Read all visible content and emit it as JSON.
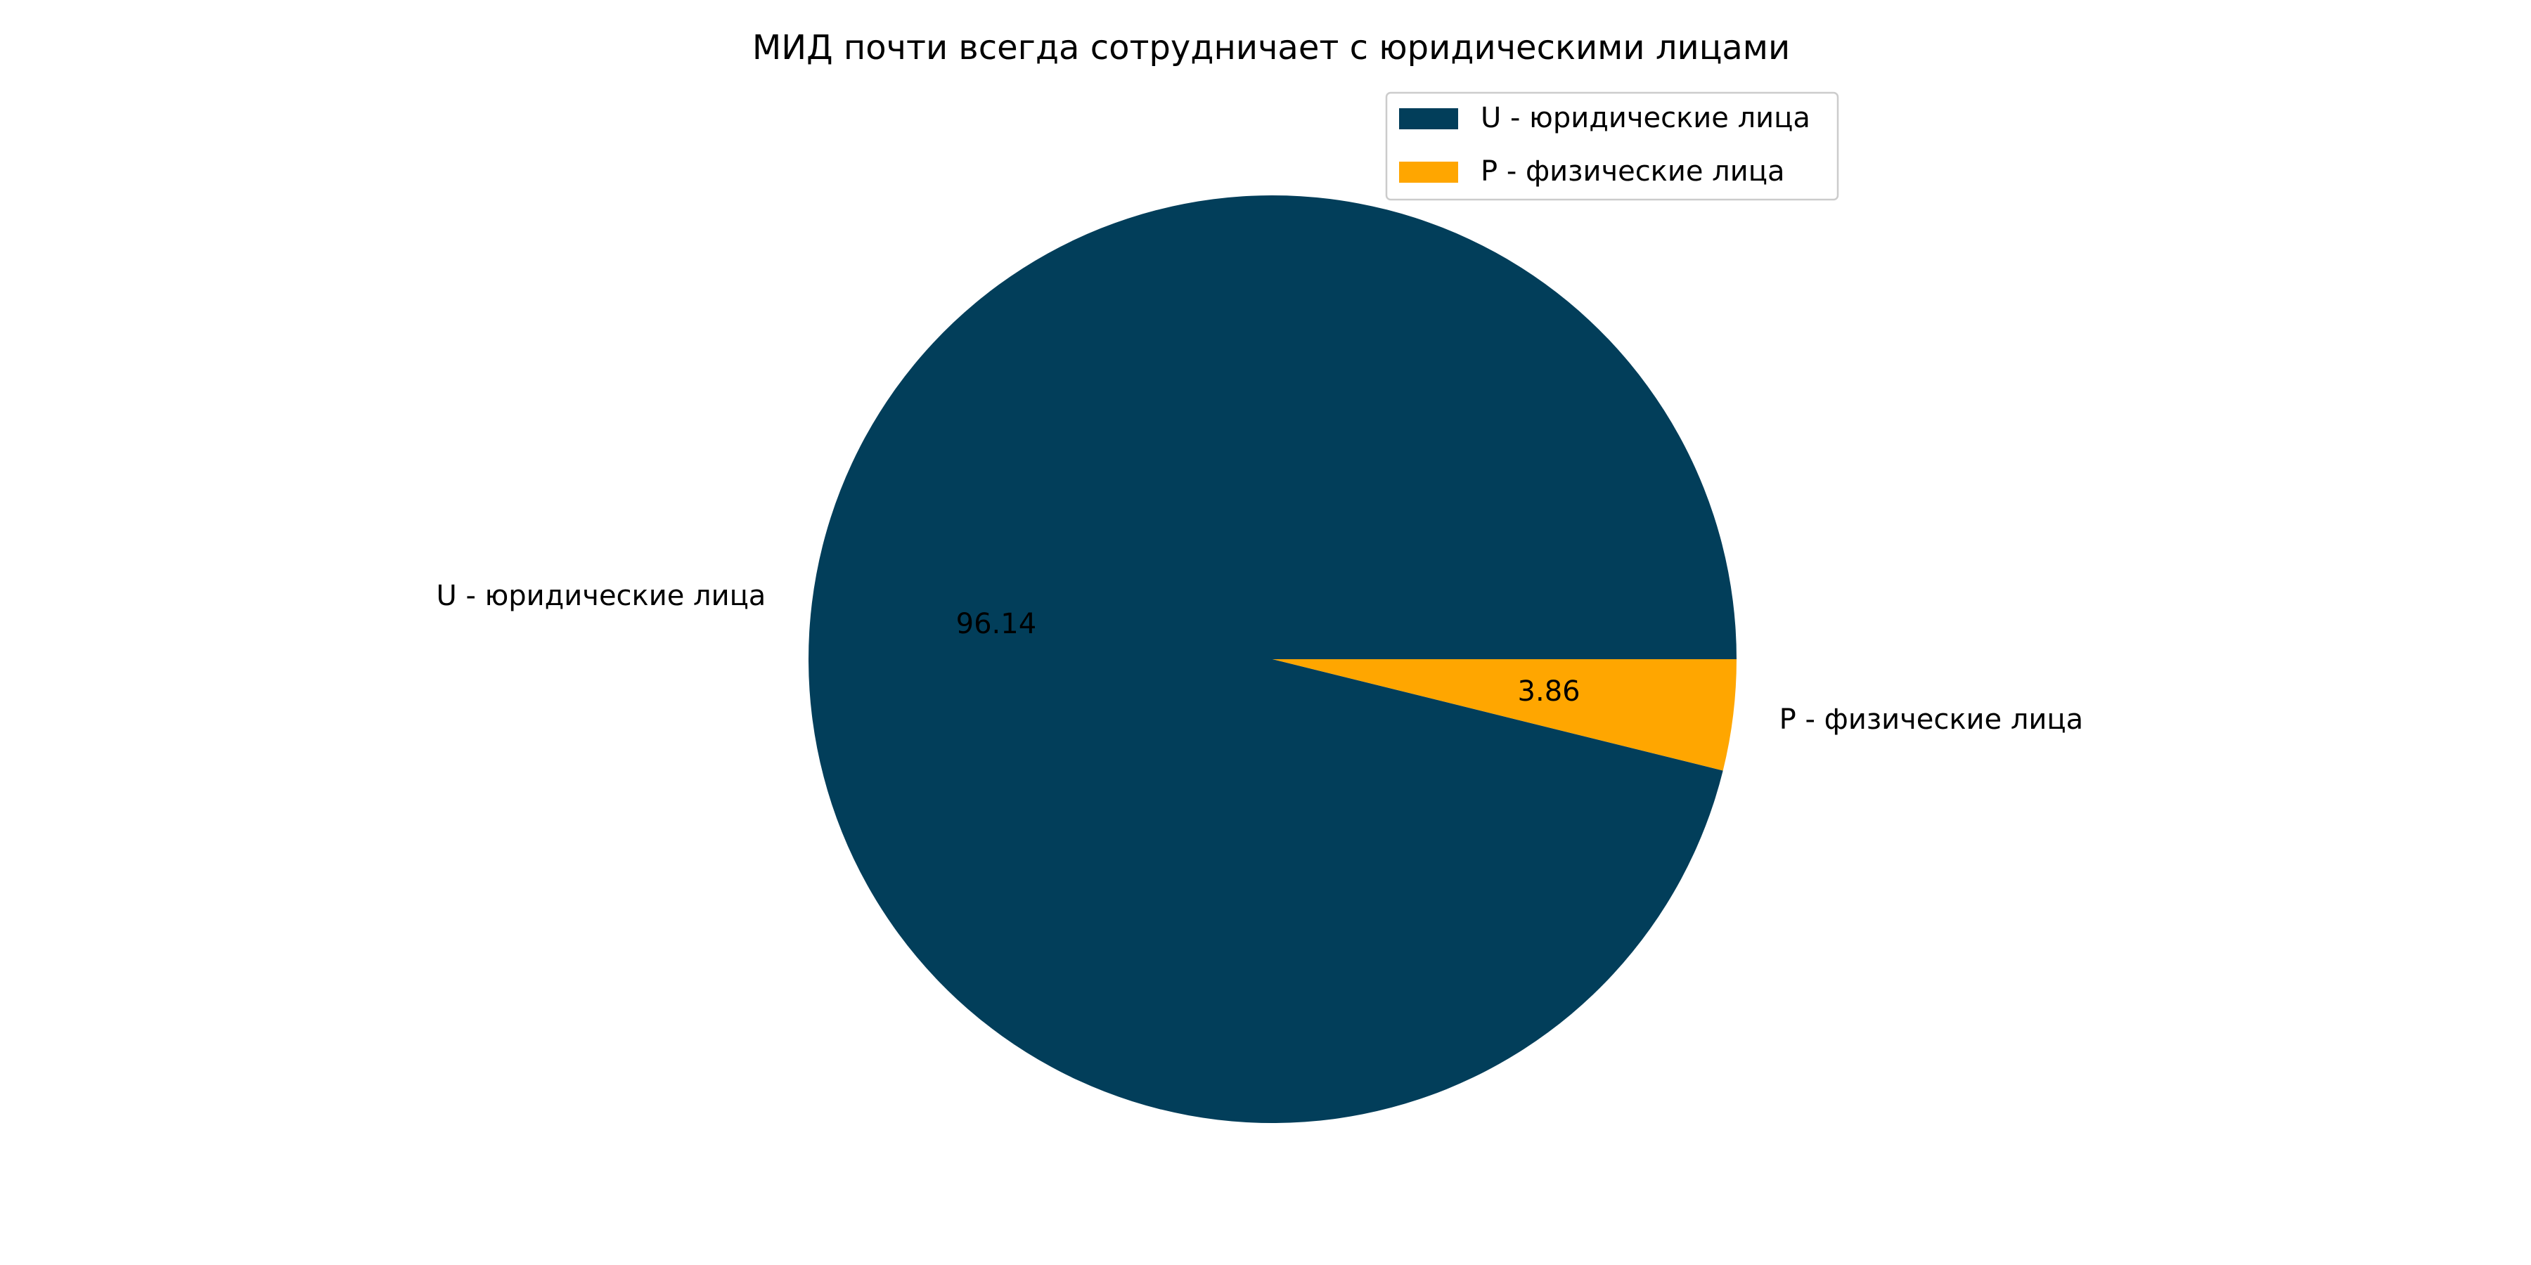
{
  "chart_data": {
    "type": "pie",
    "title": "МИД почти всегда сотрудничает с юридическими лицами",
    "slices": [
      {
        "label": "U - юридические лица",
        "value": 96.14,
        "value_label": "96.14",
        "color": "#023e5a"
      },
      {
        "label": "P - физические лица",
        "value": 3.86,
        "value_label": "3.86",
        "color": "#ffa600"
      }
    ],
    "legend": {
      "placement": "top-right",
      "entries": [
        "U - юридические лица",
        "P - физические лица"
      ]
    }
  }
}
